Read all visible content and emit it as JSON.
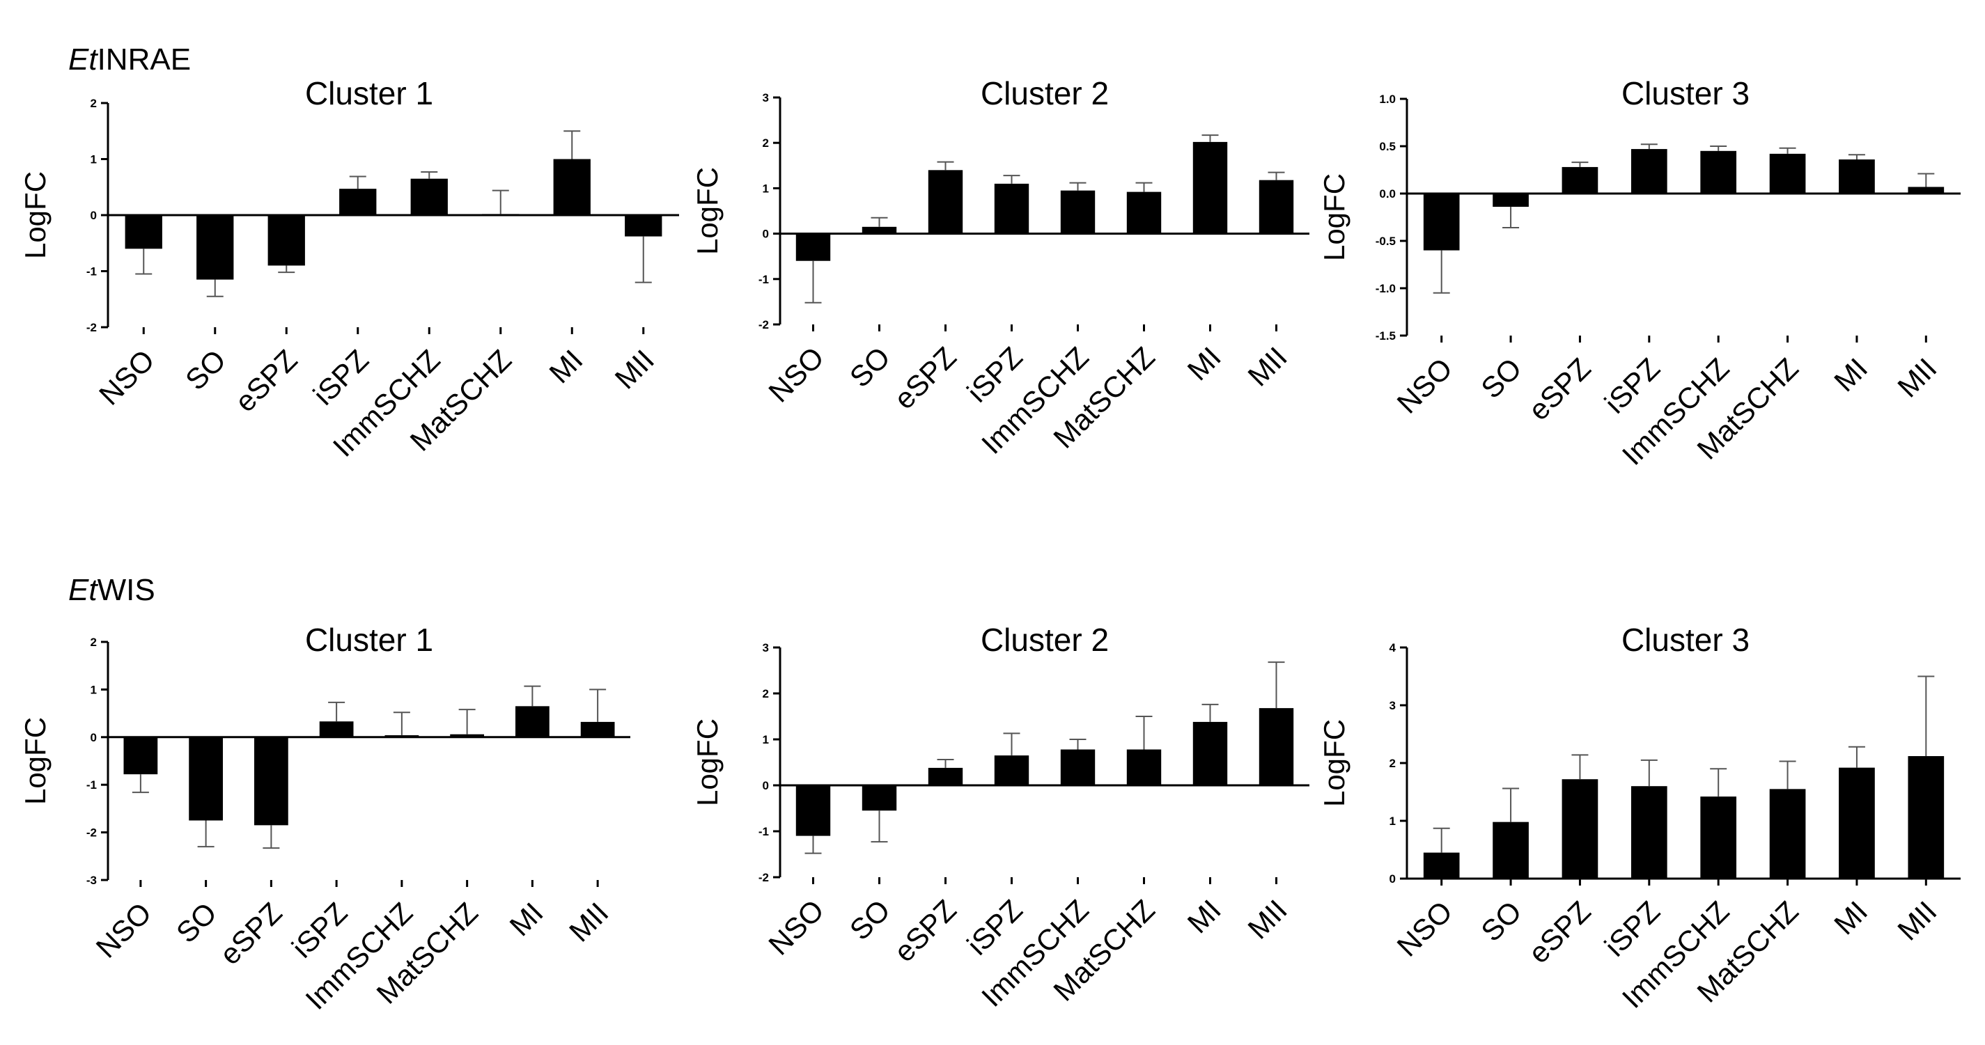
{
  "figure": {
    "strains": [
      "EtINRAE",
      "EtWIS"
    ],
    "strain_prefix": "Et",
    "strain_suffixes": [
      "INRAE",
      "WIS"
    ]
  },
  "chart_data": [
    {
      "type": "bar",
      "group": "EtINRAE",
      "title": "Cluster 1",
      "ylabel": "LogFC",
      "ylim": [
        -2,
        2
      ],
      "yticks": [
        2,
        1,
        0,
        -1,
        -2
      ],
      "categories": [
        "NSO",
        "SO",
        "eSPZ",
        "iSPZ",
        "ImmSCHZ",
        "MatSCHZ",
        "MI",
        "MII"
      ],
      "values": [
        -0.6,
        -1.15,
        -0.9,
        0.47,
        0.65,
        0.02,
        1.0,
        -0.38
      ],
      "errors": [
        0.45,
        0.3,
        0.12,
        0.22,
        0.12,
        0.42,
        0.5,
        0.82
      ]
    },
    {
      "type": "bar",
      "group": "EtINRAE",
      "title": "Cluster 2",
      "ylabel": "LogFC",
      "ylim": [
        -2,
        3
      ],
      "yticks": [
        3,
        2,
        1,
        0,
        -1,
        -2
      ],
      "categories": [
        "NSO",
        "SO",
        "eSPZ",
        "iSPZ",
        "ImmSCHZ",
        "MatSCHZ",
        "MI",
        "MII"
      ],
      "values": [
        -0.6,
        0.15,
        1.4,
        1.1,
        0.95,
        0.92,
        2.02,
        1.18
      ],
      "errors": [
        0.92,
        0.2,
        0.18,
        0.18,
        0.17,
        0.2,
        0.15,
        0.17
      ]
    },
    {
      "type": "bar",
      "group": "EtINRAE",
      "title": "Cluster 3",
      "ylabel": "LogFC",
      "ylim": [
        -1.5,
        1.0
      ],
      "yticks": [
        "1.0",
        "0.5",
        "0.0",
        "-0.5",
        "-1.0",
        "-1.5"
      ],
      "categories": [
        "NSO",
        "SO",
        "eSPZ",
        "iSPZ",
        "ImmSCHZ",
        "MatSCHZ",
        "MI",
        "MII"
      ],
      "values": [
        -0.6,
        -0.14,
        0.28,
        0.47,
        0.45,
        0.42,
        0.36,
        0.07
      ],
      "errors": [
        0.45,
        0.22,
        0.05,
        0.05,
        0.05,
        0.06,
        0.05,
        0.14
      ]
    },
    {
      "type": "bar",
      "group": "EtWIS",
      "title": "Cluster 1",
      "ylabel": "LogFC",
      "ylim": [
        -3,
        2
      ],
      "yticks": [
        2,
        1,
        0,
        -1,
        -2,
        -3
      ],
      "categories": [
        "NSO",
        "SO",
        "eSPZ",
        "iSPZ",
        "ImmSCHZ",
        "MatSCHZ",
        "MI",
        "MII"
      ],
      "values": [
        -0.78,
        -1.75,
        -1.85,
        0.33,
        0.04,
        0.06,
        0.65,
        0.32
      ],
      "errors": [
        0.38,
        0.55,
        0.48,
        0.4,
        0.48,
        0.52,
        0.42,
        0.68
      ]
    },
    {
      "type": "bar",
      "group": "EtWIS",
      "title": "Cluster 2",
      "ylabel": "LogFC",
      "ylim": [
        -2,
        3
      ],
      "yticks": [
        3,
        2,
        1,
        0,
        -1,
        -2
      ],
      "categories": [
        "NSO",
        "SO",
        "eSPZ",
        "iSPZ",
        "ImmSCHZ",
        "MatSCHZ",
        "MI",
        "MII"
      ],
      "values": [
        -1.1,
        -0.55,
        0.38,
        0.65,
        0.78,
        0.78,
        1.38,
        1.68
      ],
      "errors": [
        0.38,
        0.68,
        0.18,
        0.48,
        0.22,
        0.72,
        0.38,
        1.0
      ]
    },
    {
      "type": "bar",
      "group": "EtWIS",
      "title": "Cluster 3",
      "ylabel": "LogFC",
      "ylim": [
        0,
        4
      ],
      "yticks": [
        4,
        3,
        2,
        1,
        0
      ],
      "categories": [
        "NSO",
        "SO",
        "eSPZ",
        "iSPZ",
        "ImmSCHZ",
        "MatSCHZ",
        "MI",
        "MII"
      ],
      "values": [
        0.45,
        0.98,
        1.72,
        1.6,
        1.42,
        1.55,
        1.92,
        2.12
      ],
      "errors": [
        0.42,
        0.58,
        0.42,
        0.45,
        0.48,
        0.48,
        0.36,
        1.38
      ]
    }
  ]
}
